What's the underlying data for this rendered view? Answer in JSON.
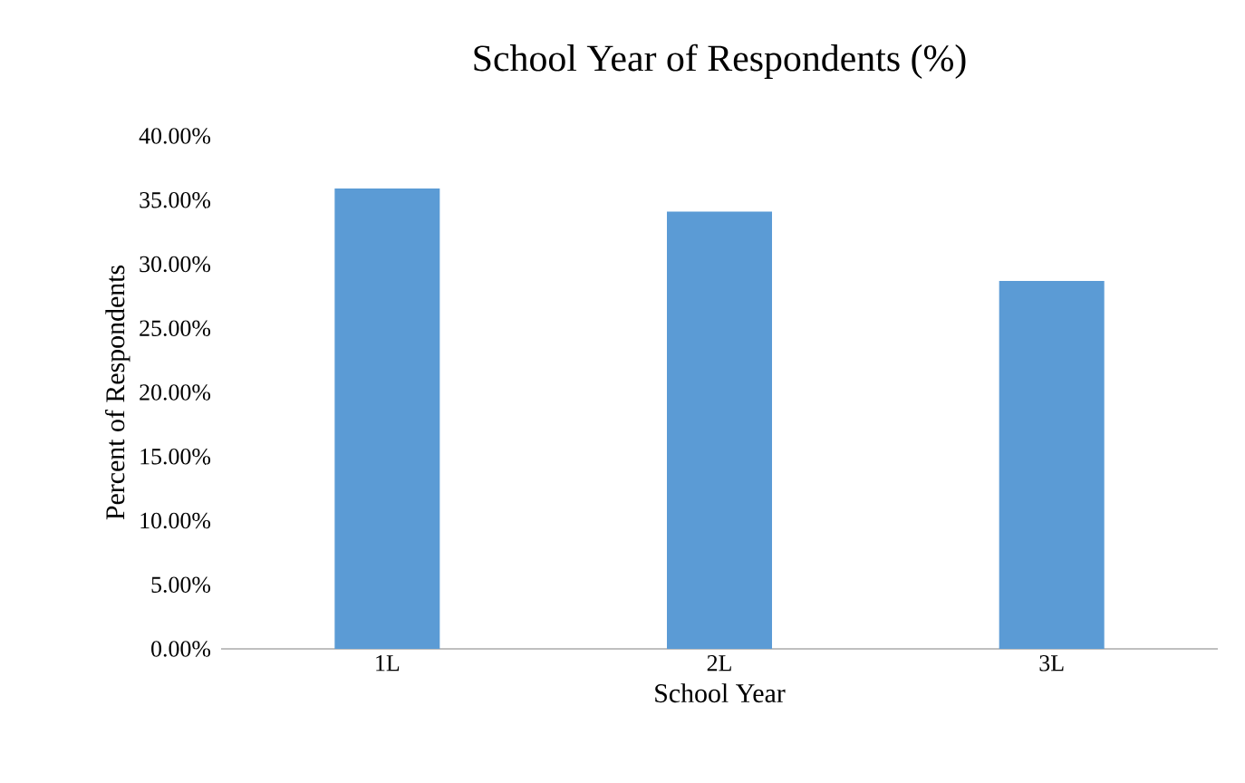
{
  "chart_data": {
    "type": "bar",
    "title": "School Year of Respondents (%)",
    "xlabel": "School Year",
    "ylabel": "Percent of Respondents",
    "categories": [
      "1L",
      "2L",
      "3L"
    ],
    "values": [
      35.9,
      34.1,
      28.7
    ],
    "color": "#5b9bd5",
    "ylim": [
      0,
      40
    ],
    "yticks": [
      {
        "value": 0,
        "label": "0.00%"
      },
      {
        "value": 5,
        "label": "5.00%"
      },
      {
        "value": 10,
        "label": "10.00%"
      },
      {
        "value": 15,
        "label": "15.00%"
      },
      {
        "value": 20,
        "label": "20.00%"
      },
      {
        "value": 25,
        "label": "25.00%"
      },
      {
        "value": 30,
        "label": "30.00%"
      },
      {
        "value": 35,
        "label": "35.00%"
      },
      {
        "value": 40,
        "label": "40.00%"
      }
    ],
    "marker": "none"
  }
}
